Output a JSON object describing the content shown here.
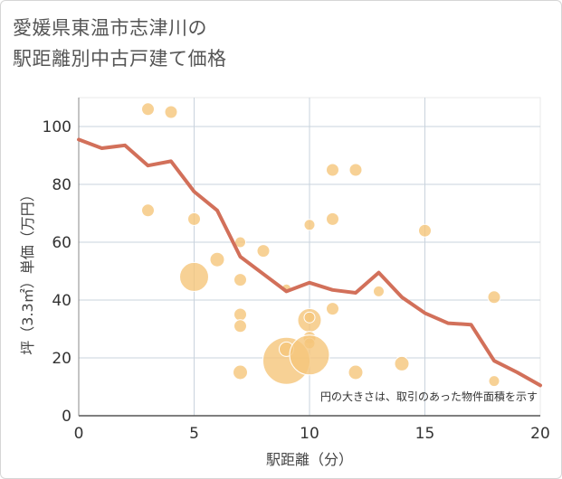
{
  "title_line1": "愛媛県東温市志津川の",
  "title_line2": "駅距離別中古戸建て価格",
  "colors": {
    "line": "#d2705a",
    "bubble": "#f5c57a",
    "grid": "#c9d3dd",
    "frame": "#e8e8e8"
  },
  "chart_data": {
    "type": "scatter",
    "xlabel": "駅距離（分）",
    "ylabel": "坪（3.3㎡）単価（万円）",
    "xlim": [
      0,
      20
    ],
    "ylim": [
      0,
      110
    ],
    "x_ticks": [
      "0",
      "5",
      "10",
      "15",
      "20"
    ],
    "y_ticks": [
      "0",
      "20",
      "40",
      "60",
      "80",
      "100"
    ],
    "annotation": "円の大きさは、取引のあった物件面積を示す",
    "bubbles": [
      {
        "x": 3,
        "y": 106,
        "r": 7
      },
      {
        "x": 4,
        "y": 105,
        "r": 7
      },
      {
        "x": 3,
        "y": 71,
        "r": 7
      },
      {
        "x": 5,
        "y": 68,
        "r": 7
      },
      {
        "x": 5,
        "y": 48,
        "r": 16
      },
      {
        "x": 6,
        "y": 54,
        "r": 8
      },
      {
        "x": 7,
        "y": 60,
        "r": 6
      },
      {
        "x": 7,
        "y": 47,
        "r": 7
      },
      {
        "x": 7,
        "y": 35,
        "r": 7
      },
      {
        "x": 7,
        "y": 31,
        "r": 7
      },
      {
        "x": 7,
        "y": 15,
        "r": 8
      },
      {
        "x": 8,
        "y": 57,
        "r": 7
      },
      {
        "x": 9,
        "y": 44,
        "r": 5
      },
      {
        "x": 9,
        "y": 19,
        "r": 26
      },
      {
        "x": 9,
        "y": 23,
        "r": 8
      },
      {
        "x": 10,
        "y": 66,
        "r": 6
      },
      {
        "x": 10,
        "y": 33,
        "r": 13
      },
      {
        "x": 10,
        "y": 34,
        "r": 6
      },
      {
        "x": 10,
        "y": 27,
        "r": 7
      },
      {
        "x": 10,
        "y": 25,
        "r": 6
      },
      {
        "x": 10,
        "y": 21,
        "r": 22
      },
      {
        "x": 11,
        "y": 85,
        "r": 7
      },
      {
        "x": 11,
        "y": 68,
        "r": 7
      },
      {
        "x": 11,
        "y": 37,
        "r": 7
      },
      {
        "x": 12,
        "y": 85,
        "r": 7
      },
      {
        "x": 12,
        "y": 15,
        "r": 8
      },
      {
        "x": 13,
        "y": 43,
        "r": 6
      },
      {
        "x": 14,
        "y": 18,
        "r": 8
      },
      {
        "x": 15,
        "y": 64,
        "r": 7
      },
      {
        "x": 18,
        "y": 41,
        "r": 7
      },
      {
        "x": 18,
        "y": 12,
        "r": 6
      }
    ],
    "line": {
      "x": [
        0,
        1,
        2,
        3,
        4,
        5,
        6,
        7,
        8,
        9,
        10,
        11,
        12,
        13,
        14,
        15,
        16,
        17,
        18,
        19,
        20
      ],
      "y": [
        95.5,
        92.5,
        93.5,
        86.5,
        88,
        77.5,
        71,
        55,
        49,
        43,
        46,
        43.5,
        42.5,
        49.5,
        41,
        35.5,
        32,
        31.5,
        19,
        15,
        10.5
      ]
    }
  }
}
